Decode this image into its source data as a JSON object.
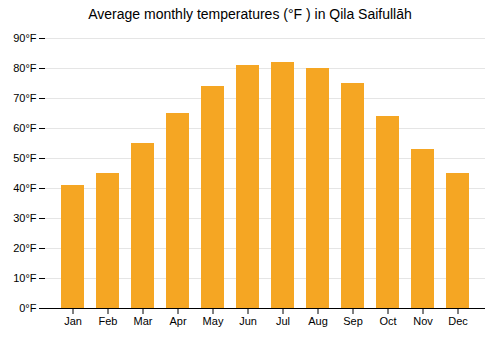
{
  "chart_data": {
    "type": "bar",
    "title": "Average monthly temperatures (°F ) in Qila Saifullāh",
    "categories": [
      "Jan",
      "Feb",
      "Mar",
      "Apr",
      "May",
      "Jun",
      "Jul",
      "Aug",
      "Sep",
      "Oct",
      "Nov",
      "Dec"
    ],
    "values": [
      41,
      45,
      55,
      65,
      74,
      81,
      82,
      80,
      75,
      64,
      53,
      45
    ],
    "color": "#F5A623",
    "ylim": [
      0,
      90
    ],
    "yticks": [
      {
        "value": 0,
        "label": "0°F"
      },
      {
        "value": 10,
        "label": "10°F"
      },
      {
        "value": 20,
        "label": "20°F"
      },
      {
        "value": 30,
        "label": "30°F"
      },
      {
        "value": 40,
        "label": "40°F"
      },
      {
        "value": 50,
        "label": "50°F"
      },
      {
        "value": 60,
        "label": "60°F"
      },
      {
        "value": 70,
        "label": "70°F"
      },
      {
        "value": 80,
        "label": "80°F"
      },
      {
        "value": 90,
        "label": "90°F"
      }
    ],
    "grid": true
  }
}
